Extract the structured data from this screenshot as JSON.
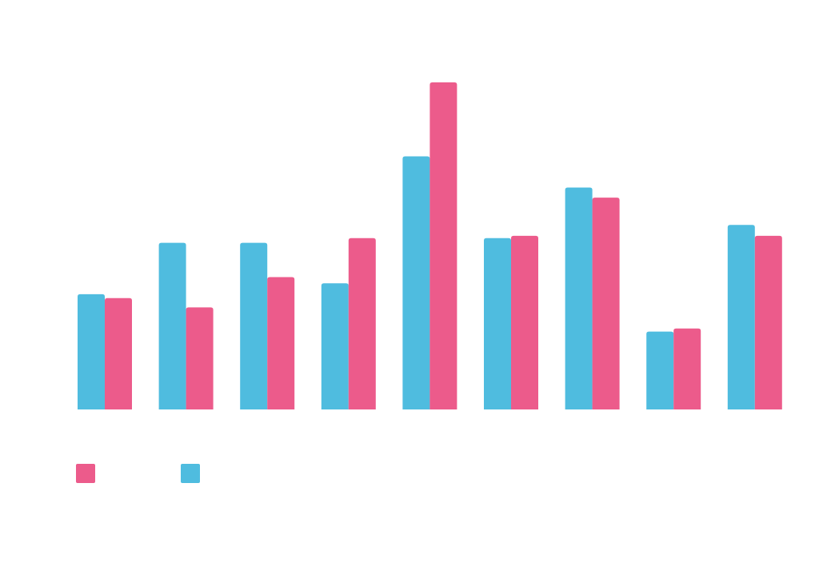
{
  "chart_data": {
    "type": "bar",
    "title": "",
    "xlabel": "",
    "ylabel": "",
    "categories": [
      "",
      "",
      "",
      "",
      "",
      "",
      "",
      "",
      ""
    ],
    "ylim": [
      0,
      420
    ],
    "grid": false,
    "legend_position": "bottom-left",
    "series": [
      {
        "color": "#4FBCDF",
        "values": [
          148,
          214,
          214,
          162,
          325,
          220,
          285,
          100,
          237
        ]
      },
      {
        "color": "#EC5B8B",
        "values": [
          143,
          131,
          170,
          220,
          420,
          223,
          272,
          104,
          223
        ]
      }
    ],
    "legend": [
      {
        "series_index": 1,
        "swatch_color": "#EC5B8B"
      },
      {
        "series_index": 0,
        "swatch_color": "#4FBCDF"
      }
    ]
  }
}
